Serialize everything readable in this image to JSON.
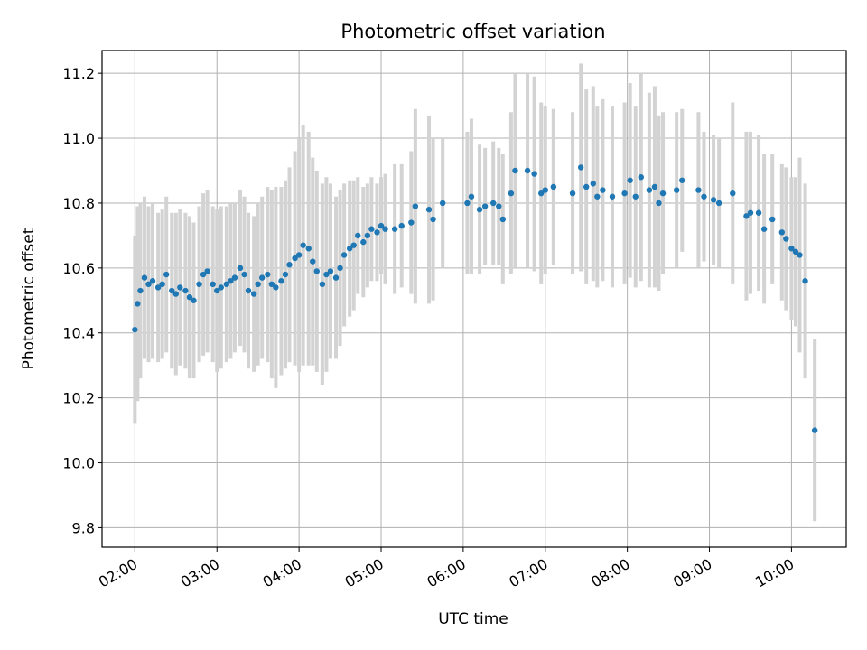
{
  "chart_data": {
    "type": "scatter",
    "title": "Photometric offset variation",
    "xlabel": "UTC time",
    "ylabel": "Photometric offset",
    "x_ticks": [
      "02:00",
      "03:00",
      "04:00",
      "05:00",
      "06:00",
      "07:00",
      "08:00",
      "09:00",
      "10:00"
    ],
    "y_ticks": [
      "9.8",
      "10.0",
      "10.2",
      "10.4",
      "10.6",
      "10.8",
      "11.0",
      "11.2"
    ],
    "xlim": [
      "01:36",
      "10:40"
    ],
    "ylim": [
      9.74,
      11.27
    ],
    "grid": true,
    "legend": "none",
    "colors": {
      "points": "#1f77b4",
      "error_bars": "#d3d3d3",
      "grid": "#b0b0b0"
    },
    "series": [
      {
        "x": [
          "02:00",
          "02:02",
          "02:04",
          "02:07",
          "02:10",
          "02:13",
          "02:17",
          "02:20",
          "02:23",
          "02:27",
          "02:30",
          "02:33",
          "02:37",
          "02:40",
          "02:43",
          "02:47",
          "02:50",
          "02:53",
          "02:57",
          "03:00",
          "03:03",
          "03:07",
          "03:10",
          "03:13",
          "03:17",
          "03:20",
          "03:23",
          "03:27",
          "03:30",
          "03:33",
          "03:37",
          "03:40",
          "03:43",
          "03:47",
          "03:50",
          "03:53",
          "03:57",
          "04:00",
          "04:03",
          "04:07",
          "04:10",
          "04:13",
          "04:17",
          "04:20",
          "04:23",
          "04:27",
          "04:30",
          "04:33",
          "04:37",
          "04:40",
          "04:43",
          "04:47",
          "04:50",
          "04:53",
          "04:57",
          "05:00",
          "05:03",
          "05:10",
          "05:15",
          "05:22",
          "05:25",
          "05:35",
          "05:38",
          "05:45",
          "06:03",
          "06:06",
          "06:12",
          "06:16",
          "06:22",
          "06:26",
          "06:29",
          "06:35",
          "06:38",
          "06:47",
          "06:52",
          "06:57",
          "07:00",
          "07:06",
          "07:20",
          "07:26",
          "07:30",
          "07:35",
          "07:38",
          "07:42",
          "07:49",
          "07:58",
          "08:02",
          "08:06",
          "08:10",
          "08:16",
          "08:20",
          "08:23",
          "08:26",
          "08:36",
          "08:40",
          "08:52",
          "08:56",
          "09:03",
          "09:07",
          "09:17",
          "09:27",
          "09:30",
          "09:36",
          "09:40",
          "09:46",
          "09:53",
          "09:56",
          "10:00",
          "10:03",
          "10:06",
          "10:10",
          "10:17"
        ],
        "y": [
          10.41,
          10.49,
          10.53,
          10.57,
          10.55,
          10.56,
          10.54,
          10.55,
          10.58,
          10.53,
          10.52,
          10.54,
          10.53,
          10.51,
          10.5,
          10.55,
          10.58,
          10.59,
          10.55,
          10.53,
          10.54,
          10.55,
          10.56,
          10.57,
          10.6,
          10.58,
          10.53,
          10.52,
          10.55,
          10.57,
          10.58,
          10.55,
          10.54,
          10.56,
          10.58,
          10.61,
          10.63,
          10.64,
          10.67,
          10.66,
          10.62,
          10.59,
          10.55,
          10.58,
          10.59,
          10.57,
          10.6,
          10.64,
          10.66,
          10.67,
          10.7,
          10.68,
          10.7,
          10.72,
          10.71,
          10.73,
          10.72,
          10.72,
          10.73,
          10.74,
          10.79,
          10.78,
          10.75,
          10.8,
          10.8,
          10.82,
          10.78,
          10.79,
          10.8,
          10.79,
          10.75,
          10.83,
          10.9,
          10.9,
          10.89,
          10.83,
          10.84,
          10.85,
          10.83,
          10.91,
          10.85,
          10.86,
          10.82,
          10.84,
          10.82,
          10.83,
          10.87,
          10.82,
          10.88,
          10.84,
          10.85,
          10.8,
          10.83,
          10.84,
          10.87,
          10.84,
          10.82,
          10.81,
          10.8,
          10.83,
          10.76,
          10.77,
          10.77,
          10.72,
          10.75,
          10.71,
          10.69,
          10.66,
          10.65,
          10.64,
          10.56,
          10.1
        ],
        "err": [
          0.29,
          0.3,
          0.27,
          0.25,
          0.24,
          0.24,
          0.23,
          0.23,
          0.24,
          0.24,
          0.25,
          0.24,
          0.24,
          0.25,
          0.24,
          0.24,
          0.25,
          0.25,
          0.24,
          0.25,
          0.25,
          0.24,
          0.24,
          0.23,
          0.24,
          0.24,
          0.24,
          0.24,
          0.25,
          0.25,
          0.27,
          0.29,
          0.31,
          0.29,
          0.29,
          0.3,
          0.33,
          0.36,
          0.37,
          0.36,
          0.32,
          0.31,
          0.31,
          0.3,
          0.27,
          0.25,
          0.24,
          0.22,
          0.21,
          0.2,
          0.18,
          0.17,
          0.16,
          0.16,
          0.15,
          0.15,
          0.17,
          0.2,
          0.19,
          0.22,
          0.3,
          0.29,
          0.25,
          0.2,
          0.22,
          0.24,
          0.2,
          0.18,
          0.19,
          0.18,
          0.2,
          0.25,
          0.3,
          0.3,
          0.3,
          0.28,
          0.26,
          0.24,
          0.25,
          0.32,
          0.3,
          0.3,
          0.28,
          0.28,
          0.28,
          0.28,
          0.3,
          0.28,
          0.32,
          0.3,
          0.31,
          0.27,
          0.25,
          0.24,
          0.22,
          0.24,
          0.2,
          0.2,
          0.2,
          0.28,
          0.26,
          0.25,
          0.24,
          0.23,
          0.2,
          0.21,
          0.22,
          0.22,
          0.23,
          0.3,
          0.3,
          0.28
        ]
      }
    ]
  }
}
